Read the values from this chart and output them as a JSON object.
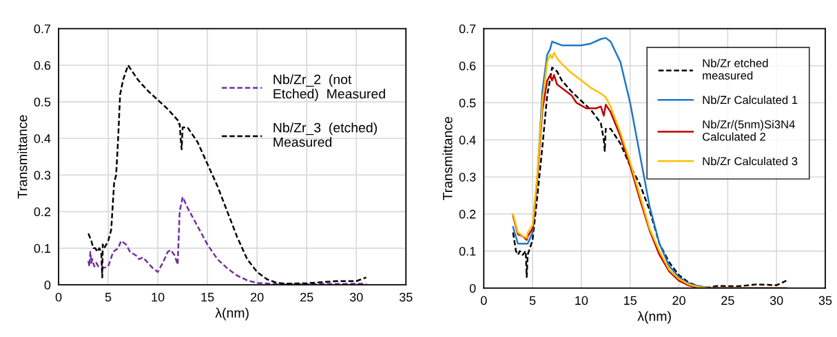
{
  "chart_data": [
    {
      "type": "line",
      "xlabel": "λ(nm)",
      "ylabel": "Transmittance",
      "xlim": [
        0,
        35
      ],
      "xticks": [
        0,
        5,
        10,
        15,
        20,
        25,
        30,
        35
      ],
      "ylim": [
        0,
        0.7
      ],
      "yticks": [
        0,
        0.1,
        0.2,
        0.3,
        0.4,
        0.5,
        0.6,
        0.7
      ],
      "grid": true,
      "legend": "top right",
      "line_style": "dashed",
      "series": [
        {
          "name": "Nb/Zr_2  (not\nEtched)  Measured",
          "color": "#7030a0",
          "x": [
            3.0,
            3.1,
            3.2,
            3.3,
            3.4,
            3.6,
            3.8,
            4.0,
            4.4,
            5.0,
            5.5,
            6.0,
            6.3,
            6.8,
            7.2,
            7.8,
            8.1,
            8.5,
            9.0,
            9.5,
            10.0,
            10.5,
            11.0,
            11.3,
            11.7,
            12.0,
            12.2,
            12.5,
            13.0,
            14.0,
            15.0,
            16.0,
            17.0,
            18.0,
            19.0,
            20.0,
            22.0,
            25.0,
            31.0
          ],
          "values": [
            0.065,
            0.05,
            0.09,
            0.06,
            0.07,
            0.05,
            0.06,
            0.05,
            0.045,
            0.05,
            0.09,
            0.1,
            0.12,
            0.11,
            0.09,
            0.08,
            0.07,
            0.075,
            0.06,
            0.045,
            0.035,
            0.06,
            0.09,
            0.095,
            0.08,
            0.055,
            0.2,
            0.24,
            0.21,
            0.16,
            0.11,
            0.07,
            0.045,
            0.025,
            0.012,
            0.005,
            0.002,
            0.002,
            0.003
          ]
        },
        {
          "name": "Nb/Zr_3  (etched)\nMeasured",
          "color": "#000000",
          "x": [
            3.0,
            3.3,
            3.5,
            3.7,
            3.9,
            4.1,
            4.3,
            4.4,
            4.45,
            4.6,
            5.0,
            5.3,
            5.6,
            5.8,
            6.0,
            6.2,
            6.5,
            7.0,
            8.0,
            9.0,
            10.0,
            11.0,
            12.0,
            12.1,
            12.2,
            12.3,
            12.4,
            12.5,
            13.0,
            14.0,
            15.0,
            16.0,
            17.0,
            18.0,
            19.0,
            20.0,
            21.0,
            22.0,
            23.0,
            25.0,
            27.0,
            28.0,
            30.0,
            31.0
          ],
          "values": [
            0.14,
            0.12,
            0.1,
            0.1,
            0.09,
            0.1,
            0.09,
            0.02,
            0.11,
            0.1,
            0.12,
            0.15,
            0.28,
            0.3,
            0.4,
            0.52,
            0.56,
            0.6,
            0.56,
            0.53,
            0.505,
            0.48,
            0.45,
            0.44,
            0.44,
            0.4,
            0.37,
            0.43,
            0.43,
            0.39,
            0.33,
            0.27,
            0.2,
            0.13,
            0.07,
            0.035,
            0.015,
            0.005,
            0.003,
            0.004,
            0.008,
            0.01,
            0.01,
            0.02
          ]
        }
      ]
    },
    {
      "type": "line",
      "xlabel": "λ(nm)",
      "ylabel": "Transmittance",
      "xlim": [
        0,
        35
      ],
      "xticks": [
        0,
        5,
        10,
        15,
        20,
        25,
        30,
        35
      ],
      "ylim": [
        0,
        0.7
      ],
      "yticks": [
        0,
        0.1,
        0.2,
        0.3,
        0.4,
        0.5,
        0.6,
        0.7
      ],
      "grid": true,
      "legend": "top right",
      "series": [
        {
          "name": "Nb/Zr etched\nmeasured",
          "color": "#000000",
          "line_style": "dashed",
          "x": [
            3.0,
            3.3,
            3.5,
            3.7,
            4.0,
            4.3,
            4.4,
            4.5,
            5.0,
            5.5,
            6.0,
            6.5,
            7.0,
            7.5,
            8.0,
            9.0,
            10.0,
            11.0,
            12.0,
            12.3,
            12.4,
            12.5,
            13.0,
            14.0,
            15.0,
            16.0,
            17.0,
            18.0,
            19.0,
            20.0,
            21.0,
            22.0,
            23.0,
            24.0,
            26.0,
            28.0,
            30.0,
            31.0
          ],
          "values": [
            0.15,
            0.1,
            0.09,
            0.1,
            0.09,
            0.1,
            0.03,
            0.09,
            0.13,
            0.25,
            0.38,
            0.52,
            0.595,
            0.585,
            0.56,
            0.53,
            0.505,
            0.48,
            0.445,
            0.4,
            0.37,
            0.43,
            0.43,
            0.39,
            0.33,
            0.28,
            0.21,
            0.12,
            0.07,
            0.035,
            0.015,
            0.005,
            0.002,
            0.006,
            0.005,
            0.01,
            0.008,
            0.02
          ]
        },
        {
          "name": "Nb/Zr Calculated 1",
          "color": "#1f77c8",
          "line_style": "solid",
          "x": [
            3.0,
            3.5,
            4.0,
            4.5,
            5.0,
            5.5,
            6.0,
            6.5,
            6.8,
            7.0,
            8.0,
            9.0,
            10.0,
            11.0,
            12.0,
            12.5,
            13.0,
            14.0,
            15.0,
            16.0,
            17.0,
            18.0,
            19.0,
            20.0,
            21.0,
            22.0,
            23.0,
            31.0
          ],
          "values": [
            0.165,
            0.12,
            0.12,
            0.12,
            0.15,
            0.3,
            0.53,
            0.63,
            0.645,
            0.665,
            0.655,
            0.655,
            0.655,
            0.66,
            0.672,
            0.675,
            0.665,
            0.61,
            0.5,
            0.36,
            0.22,
            0.12,
            0.06,
            0.03,
            0.013,
            0.005,
            0.001,
            0.0
          ]
        },
        {
          "name": "Nb/Zr/(5nm)Si3N4\nCalculated 2",
          "color": "#c00000",
          "line_style": "solid",
          "x": [
            3.0,
            3.5,
            4.0,
            4.4,
            4.5,
            5.0,
            5.5,
            6.0,
            6.5,
            6.8,
            7.0,
            7.2,
            7.5,
            8.0,
            9.0,
            9.5,
            10.5,
            11.0,
            11.5,
            12.0,
            12.3,
            12.5,
            13.0,
            14.0,
            15.0,
            16.0,
            17.0,
            18.0,
            19.0,
            20.0,
            21.0,
            22.0,
            23.0,
            31.0
          ],
          "values": [
            0.195,
            0.145,
            0.14,
            0.13,
            0.14,
            0.16,
            0.3,
            0.48,
            0.56,
            0.575,
            0.56,
            0.575,
            0.55,
            0.54,
            0.52,
            0.5,
            0.485,
            0.485,
            0.485,
            0.49,
            0.465,
            0.495,
            0.475,
            0.41,
            0.33,
            0.24,
            0.155,
            0.09,
            0.045,
            0.02,
            0.007,
            0.002,
            0.0,
            0.0
          ]
        },
        {
          "name": "Nb/Zr Calculated 3",
          "color": "#ffc000",
          "line_style": "solid",
          "x": [
            3.0,
            3.5,
            4.0,
            4.4,
            4.5,
            5.0,
            5.5,
            6.0,
            6.5,
            6.8,
            7.0,
            7.2,
            7.5,
            8.0,
            9.0,
            10.0,
            11.0,
            12.0,
            12.5,
            13.0,
            14.0,
            15.0,
            16.0,
            17.0,
            18.0,
            19.0,
            20.0,
            21.0,
            22.0,
            23.0,
            31.0
          ],
          "values": [
            0.2,
            0.15,
            0.14,
            0.135,
            0.15,
            0.17,
            0.31,
            0.5,
            0.61,
            0.63,
            0.62,
            0.635,
            0.62,
            0.605,
            0.58,
            0.56,
            0.54,
            0.525,
            0.515,
            0.49,
            0.42,
            0.34,
            0.25,
            0.16,
            0.1,
            0.05,
            0.025,
            0.01,
            0.003,
            0.0,
            0.0
          ]
        }
      ]
    }
  ]
}
